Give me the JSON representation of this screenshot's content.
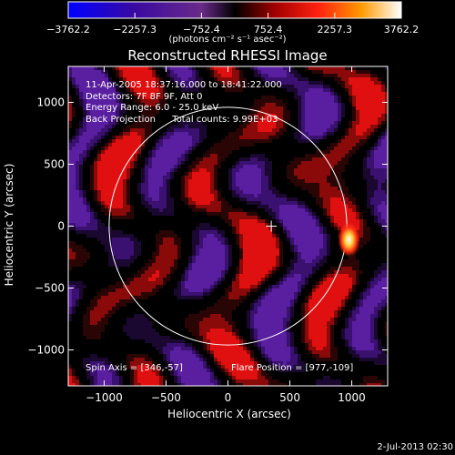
{
  "colorbar": {
    "min": -3762.2,
    "max": 3762.2,
    "tick_labels": [
      "−3762.2",
      "−2257.3",
      "−752.4",
      "752.4",
      "2257.3",
      "3762.2"
    ],
    "tick_values": [
      -3762.2,
      -2257.3,
      -752.4,
      752.4,
      2257.3,
      3762.2
    ],
    "unit_label": "(photons cm⁻² s⁻¹ asec⁻²)",
    "colors": [
      "#0000ff",
      "#4b0090",
      "#7030a0",
      "#000000",
      "#cc0000",
      "#ff2a1a",
      "#ff9a00",
      "#ffffff"
    ]
  },
  "chart_data": {
    "type": "heatmap",
    "title": "Reconstructed RHESSI Image",
    "xlabel": "Heliocentric X (arcsec)",
    "ylabel": "Heliocentric Y (arcsec)",
    "xlim": [
      -1290,
      1290
    ],
    "ylim": [
      -1290,
      1290
    ],
    "xticks": [
      -1000,
      -500,
      0,
      500,
      1000
    ],
    "yticks": [
      -1000,
      -500,
      0,
      500,
      1000
    ],
    "xtick_labels": [
      "−1000",
      "−500",
      "0",
      "500",
      "1000"
    ],
    "ytick_labels": [
      "−1000",
      "−500",
      "0",
      "500",
      "1000"
    ],
    "solar_limb_radius": 960,
    "sun_center_marker": [
      350,
      0
    ],
    "annotations": {
      "time_range": "11-Apr-2005 18:37:16.000 to 18:41:22.000",
      "detectors": "Detectors: 7F 8F 9F, Att 0",
      "energy_range": "Energy Range: 6.0 - 25.0 keV",
      "method": "Back Projection",
      "total_counts": "Total counts: 9.99E+03",
      "spin_axis": "Spin Axis = [346,-57]",
      "flare_position": "Flare Position = [977,-109]"
    },
    "flare_source": {
      "x": 977,
      "y": -109,
      "intensity": 3762.2
    }
  },
  "footer": {
    "timestamp": "2-Jul-2013 02:30"
  }
}
